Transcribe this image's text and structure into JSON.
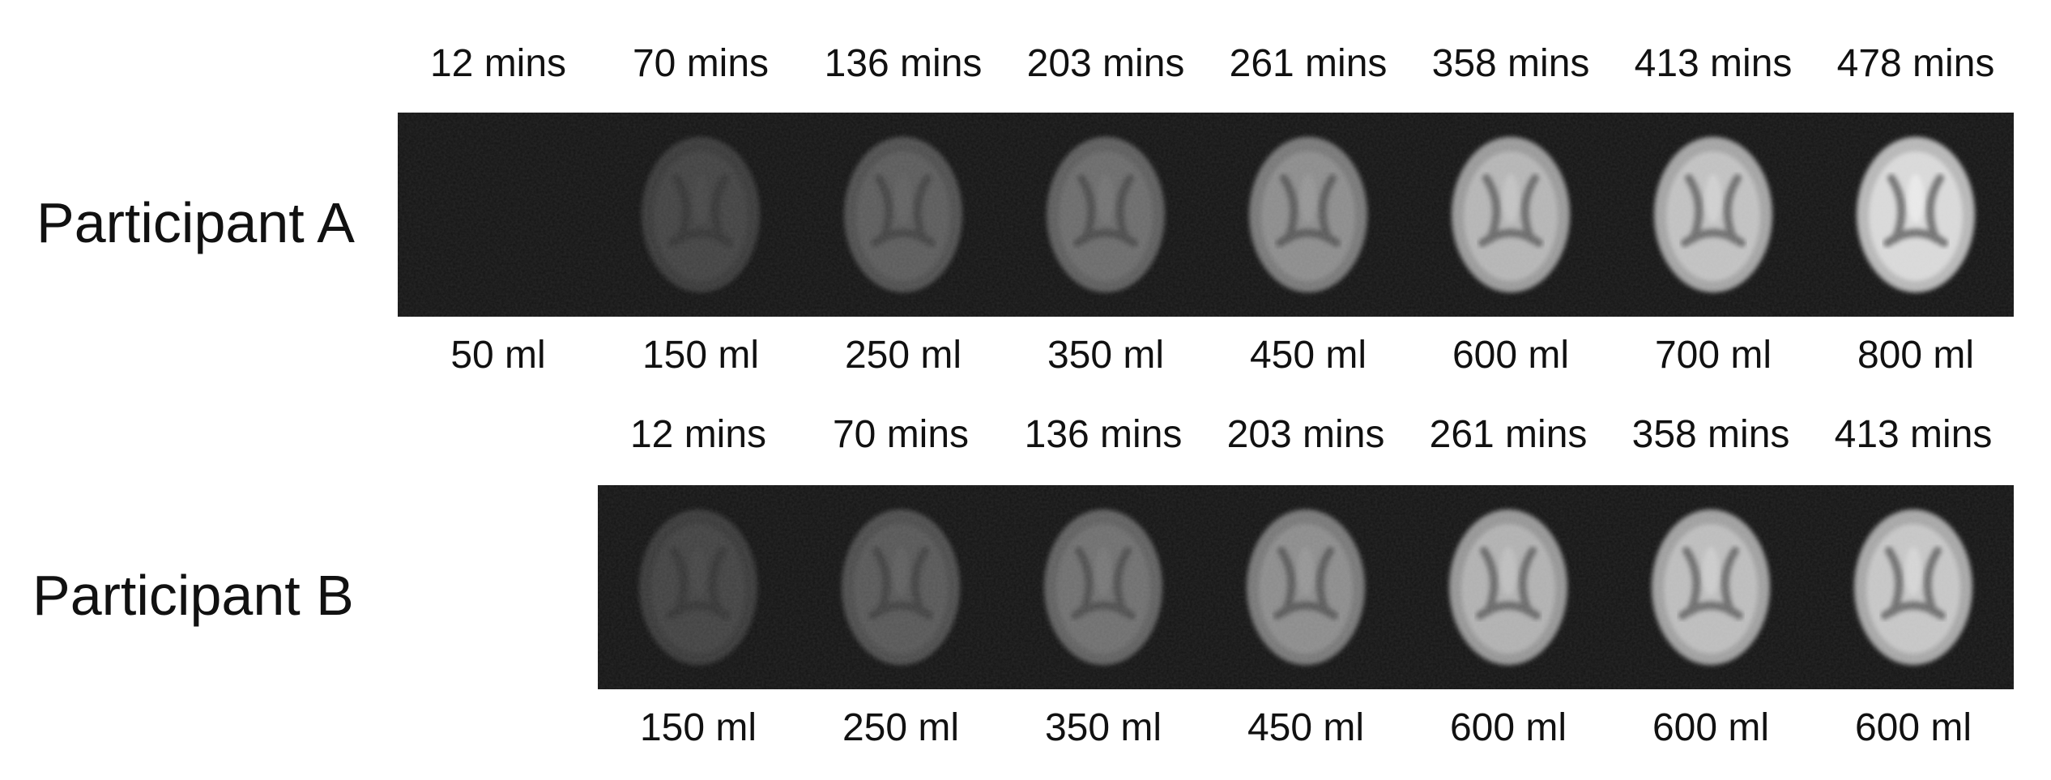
{
  "participants": [
    {
      "label": "Participant A",
      "times": [
        "12 mins",
        "70 mins",
        "136 mins",
        "203 mins",
        "261 mins",
        "358 mins",
        "413 mins",
        "478 mins"
      ],
      "volumes": [
        "50 ml",
        "150 ml",
        "250 ml",
        "350 ml",
        "450 ml",
        "600 ml",
        "700 ml",
        "800 ml"
      ],
      "intensity": [
        0.0,
        0.22,
        0.34,
        0.42,
        0.58,
        0.78,
        0.84,
        0.95
      ]
    },
    {
      "label": "Participant B",
      "times": [
        "12 mins",
        "70 mins",
        "136 mins",
        "203 mins",
        "261 mins",
        "358 mins",
        "413 mins"
      ],
      "volumes": [
        "150 ml",
        "250 ml",
        "350 ml",
        "450 ml",
        "600 ml",
        "600 ml",
        "600 ml"
      ],
      "intensity": [
        0.22,
        0.33,
        0.44,
        0.58,
        0.76,
        0.82,
        0.86
      ]
    }
  ]
}
